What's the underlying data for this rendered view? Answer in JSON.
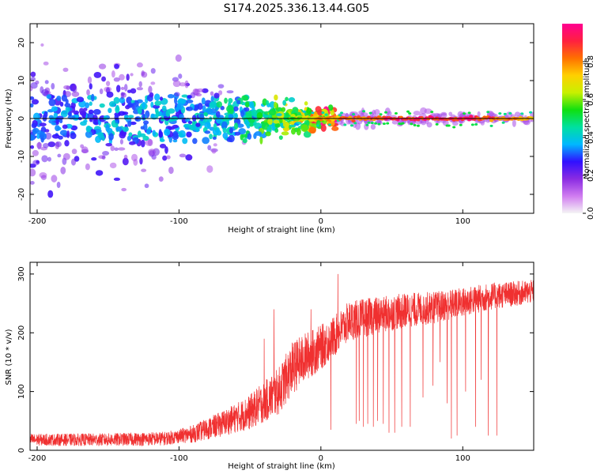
{
  "figure_title": "S174.2025.336.13.44.G05",
  "colors": {
    "snr_line": "#f03030",
    "zero_line": "#000000",
    "frame": "#000000"
  },
  "chart_data": [
    {
      "type": "heatmap",
      "name": "spectrogram",
      "title": "S174.2025.336.13.44.G05",
      "xlabel": "Height of straight line (km)",
      "ylabel": "Frequency (Hz)",
      "xlim": [
        -205,
        150
      ],
      "ylim": [
        -25,
        25
      ],
      "xticks": [
        -200,
        -100,
        0,
        100
      ],
      "xtick_labels": [
        "-200",
        "-100",
        "0",
        "100"
      ],
      "yticks": [
        -20,
        -10,
        0,
        10,
        20
      ],
      "ytick_labels": [
        "-20",
        "-10",
        "0",
        "10",
        "20"
      ],
      "reference_line_y": 0,
      "colorbar": {
        "label": "Normalized spectral amplitude",
        "range": [
          0,
          1
        ],
        "ticks": [
          0.0,
          0.2,
          0.4,
          0.6,
          0.8
        ],
        "tick_labels": [
          "0.0",
          "0.2",
          "0.4",
          "0.6",
          "0.8"
        ],
        "colormap": [
          "#f5f5f5",
          "#d07cf0",
          "#8a2be2",
          "#3010ff",
          "#00b8ff",
          "#00e0a0",
          "#10e010",
          "#c8f000",
          "#ffd000",
          "#ff7000",
          "#ff2040",
          "#ff0090"
        ]
      },
      "features": {
        "central_band_amplitude_by_height": [
          {
            "x": -200,
            "amp": 0.25
          },
          {
            "x": -150,
            "amp": 0.3
          },
          {
            "x": -100,
            "amp": 0.3
          },
          {
            "x": -50,
            "amp": 0.4
          },
          {
            "x": -20,
            "amp": 0.6
          },
          {
            "x": 0,
            "amp": 0.8
          },
          {
            "x": 50,
            "amp": 0.95
          },
          {
            "x": 100,
            "amp": 0.95
          },
          {
            "x": 150,
            "amp": 0.8
          }
        ],
        "noise_spread_hz_by_height": [
          {
            "x": -200,
            "spread": 25
          },
          {
            "x": -100,
            "spread": 20
          },
          {
            "x": -60,
            "spread": 10
          },
          {
            "x": -20,
            "spread": 6
          },
          {
            "x": 20,
            "spread": 3
          },
          {
            "x": 150,
            "spread": 2
          }
        ]
      }
    },
    {
      "type": "line",
      "name": "snr",
      "title": "",
      "xlabel": "Height of straight line (km)",
      "ylabel": "SNR (10 * v/v)",
      "xlim": [
        -205,
        150
      ],
      "ylim": [
        0,
        320
      ],
      "xticks": [
        -200,
        -100,
        0,
        100
      ],
      "xtick_labels": [
        "-200",
        "-100",
        "0",
        "100"
      ],
      "yticks": [
        0,
        100,
        200,
        300
      ],
      "ytick_labels": [
        "0",
        "100",
        "200",
        "300"
      ],
      "trend": [
        {
          "x": -205,
          "y": 18
        },
        {
          "x": -150,
          "y": 18
        },
        {
          "x": -110,
          "y": 20
        },
        {
          "x": -90,
          "y": 28
        },
        {
          "x": -70,
          "y": 45
        },
        {
          "x": -50,
          "y": 65
        },
        {
          "x": -30,
          "y": 100
        },
        {
          "x": -20,
          "y": 140
        },
        {
          "x": -10,
          "y": 160
        },
        {
          "x": 0,
          "y": 175
        },
        {
          "x": 10,
          "y": 195
        },
        {
          "x": 20,
          "y": 220
        },
        {
          "x": 40,
          "y": 230
        },
        {
          "x": 60,
          "y": 238
        },
        {
          "x": 80,
          "y": 243
        },
        {
          "x": 100,
          "y": 252
        },
        {
          "x": 120,
          "y": 262
        },
        {
          "x": 150,
          "y": 270
        }
      ],
      "noise_amplitude": [
        {
          "x": -205,
          "a": 10
        },
        {
          "x": -100,
          "a": 12
        },
        {
          "x": -60,
          "a": 25
        },
        {
          "x": -20,
          "a": 45
        },
        {
          "x": 10,
          "a": 35
        },
        {
          "x": 150,
          "a": 20
        }
      ],
      "spikes": [
        {
          "x": -40,
          "y": 190
        },
        {
          "x": -33,
          "y": 240
        },
        {
          "x": -7,
          "y": 240
        },
        {
          "x": 12,
          "y": 300
        },
        {
          "x": 7,
          "y": 35
        }
      ],
      "dropouts": [
        {
          "x": 25,
          "y": 45
        },
        {
          "x": 27,
          "y": 50
        },
        {
          "x": 30,
          "y": 40
        },
        {
          "x": 33,
          "y": 45
        },
        {
          "x": 37,
          "y": 40
        },
        {
          "x": 40,
          "y": 50
        },
        {
          "x": 44,
          "y": 45
        },
        {
          "x": 48,
          "y": 30
        },
        {
          "x": 52,
          "y": 30
        },
        {
          "x": 57,
          "y": 40
        },
        {
          "x": 63,
          "y": 40
        },
        {
          "x": 72,
          "y": 90
        },
        {
          "x": 79,
          "y": 110
        },
        {
          "x": 84,
          "y": 150
        },
        {
          "x": 89,
          "y": 80
        },
        {
          "x": 92,
          "y": 20
        },
        {
          "x": 96,
          "y": 25
        },
        {
          "x": 102,
          "y": 100
        },
        {
          "x": 109,
          "y": 40
        },
        {
          "x": 113,
          "y": 120
        },
        {
          "x": 118,
          "y": 25
        },
        {
          "x": 124,
          "y": 25
        }
      ]
    }
  ]
}
